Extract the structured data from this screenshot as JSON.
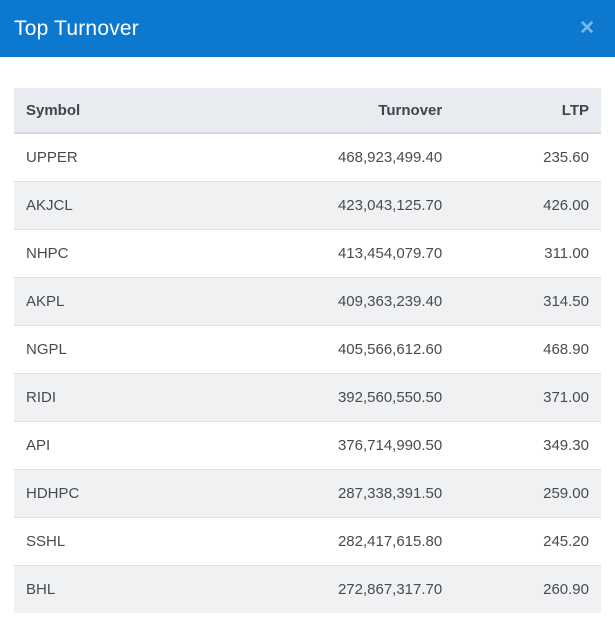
{
  "modal": {
    "title": "Top Turnover",
    "close_icon_glyph": "✕"
  },
  "colors": {
    "header_bg": "#0d79ce",
    "header_text": "#ffffff",
    "close_icon": "#7fb7e6",
    "thead_bg": "#e8ecf1",
    "row_stripe_bg": "#f0f1f2",
    "row_bg": "#ffffff",
    "row_border": "#dee2e6",
    "body_text": "#474b4f"
  },
  "table": {
    "columns": {
      "symbol": "Symbol",
      "turnover": "Turnover",
      "ltp": "LTP"
    },
    "rows": [
      {
        "symbol": "UPPER",
        "turnover": "468,923,499.40",
        "ltp": "235.60"
      },
      {
        "symbol": "AKJCL",
        "turnover": "423,043,125.70",
        "ltp": "426.00"
      },
      {
        "symbol": "NHPC",
        "turnover": "413,454,079.70",
        "ltp": "311.00"
      },
      {
        "symbol": "AKPL",
        "turnover": "409,363,239.40",
        "ltp": "314.50"
      },
      {
        "symbol": "NGPL",
        "turnover": "405,566,612.60",
        "ltp": "468.90"
      },
      {
        "symbol": "RIDI",
        "turnover": "392,560,550.50",
        "ltp": "371.00"
      },
      {
        "symbol": "API",
        "turnover": "376,714,990.50",
        "ltp": "349.30"
      },
      {
        "symbol": "HDHPC",
        "turnover": "287,338,391.50",
        "ltp": "259.00"
      },
      {
        "symbol": "SSHL",
        "turnover": "282,417,615.80",
        "ltp": "245.20"
      },
      {
        "symbol": "BHL",
        "turnover": "272,867,317.70",
        "ltp": "260.90"
      }
    ]
  }
}
